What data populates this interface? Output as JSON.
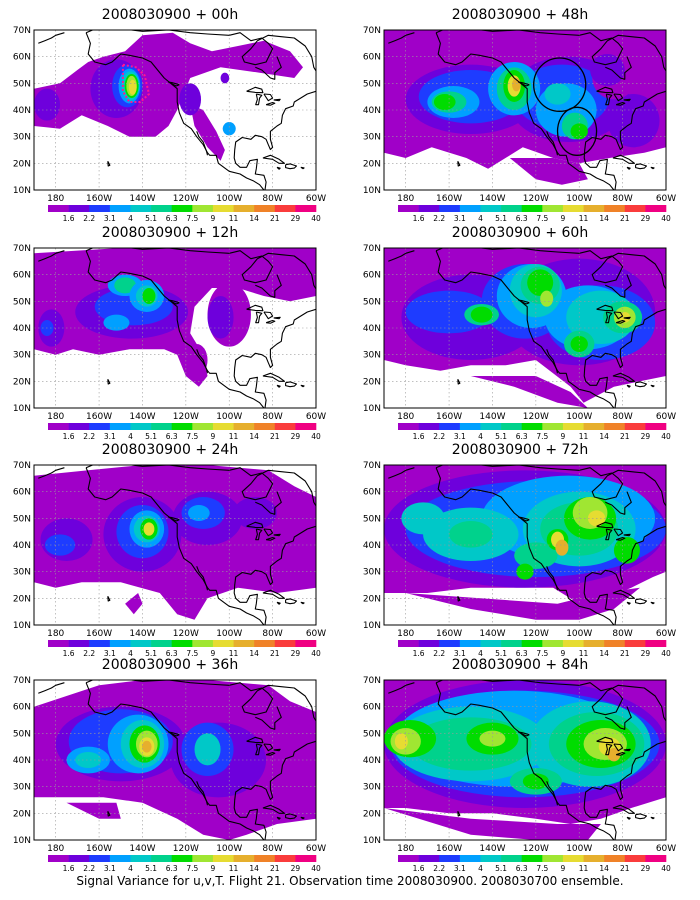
{
  "figure": {
    "caption": "Signal Variance for u,v,T. Flight 21. Observation time 2008030900. 2008030700 ensemble."
  },
  "axes": {
    "lat_labels": [
      "10N",
      "20N",
      "30N",
      "40N",
      "50N",
      "60N",
      "70N"
    ],
    "lat_values": [
      10,
      20,
      30,
      40,
      50,
      60,
      70
    ],
    "lon_labels": [
      "180",
      "160W",
      "140W",
      "120W",
      "100W",
      "80W",
      "60W"
    ],
    "lon_values": [
      -180,
      -160,
      -140,
      -120,
      -100,
      -80,
      -60
    ],
    "lon_range": [
      -190,
      -60
    ],
    "lat_range": [
      10,
      70
    ]
  },
  "colorbar": {
    "levels": [
      "1.6",
      "2.2",
      "3.1",
      "4",
      "5.1",
      "6.3",
      "7.5",
      "9",
      "11",
      "14",
      "21",
      "29",
      "40"
    ],
    "colors": [
      "#a000c8",
      "#6e00dc",
      "#1e3cff",
      "#00a0ff",
      "#00c8c8",
      "#00d28c",
      "#00dc00",
      "#a0e632",
      "#e6dc32",
      "#e6af2d",
      "#f08228",
      "#fa3c3c",
      "#f00082"
    ]
  },
  "panels": [
    {
      "title": "2008030900 + 00h"
    },
    {
      "title": "2008030900 + 48h"
    },
    {
      "title": "2008030900 + 12h"
    },
    {
      "title": "2008030900 + 60h"
    },
    {
      "title": "2008030900 + 24h"
    },
    {
      "title": "2008030900 + 72h"
    },
    {
      "title": "2008030900 + 36h"
    },
    {
      "title": "2008030900 + 84h"
    }
  ]
}
